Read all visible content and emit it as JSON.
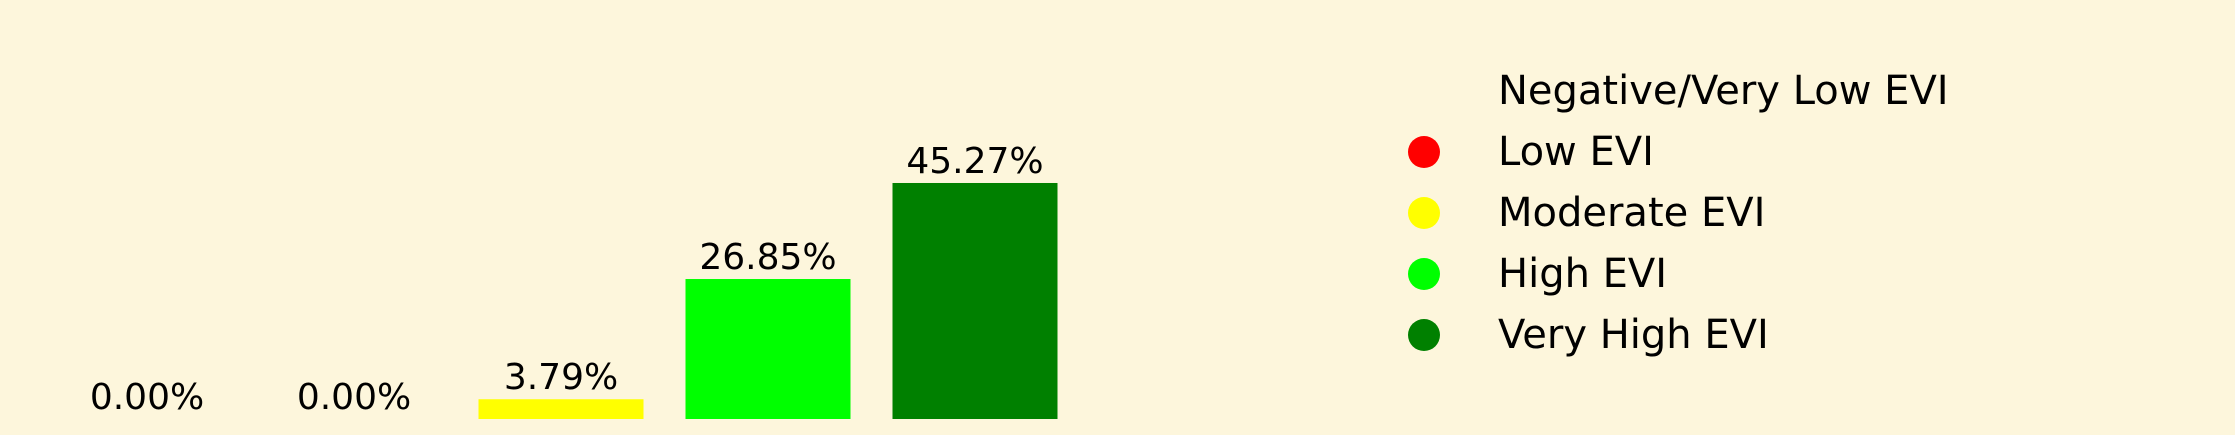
{
  "chart_data": {
    "type": "bar",
    "categories": [
      "Negative/Very Low EVI",
      "Low EVI",
      "Moderate EVI",
      "High EVI",
      "Very High EVI"
    ],
    "values": [
      0.0,
      0.0,
      3.79,
      26.85,
      45.27
    ],
    "data_labels": [
      "0.00%",
      "0.00%",
      "3.79%",
      "26.85%",
      "45.27%"
    ],
    "colors": [
      "#fdf6dc",
      "#ff0000",
      "#ffff00",
      "#00ff00",
      "#008000"
    ],
    "title": "",
    "xlabel": "",
    "ylabel": "",
    "ylim": [
      0,
      75
    ],
    "grid": false,
    "axes_visible": false,
    "legend_position": "right"
  },
  "legend": {
    "items": [
      {
        "label": "Negative/Very Low EVI",
        "color": "#fdf6dc"
      },
      {
        "label": "Low EVI",
        "color": "#ff0000"
      },
      {
        "label": "Moderate EVI",
        "color": "#ffff00"
      },
      {
        "label": "High EVI",
        "color": "#00ff00"
      },
      {
        "label": "Very High EVI",
        "color": "#008000"
      }
    ]
  }
}
